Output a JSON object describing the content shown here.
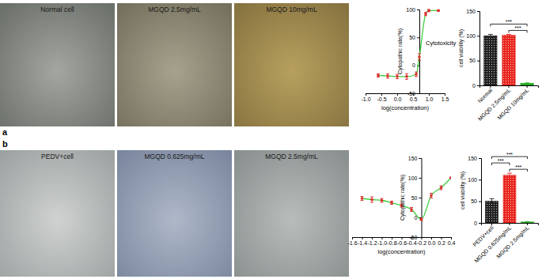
{
  "panels": [
    {
      "label": "a",
      "images": [
        "Normal cell",
        "MGQD 2.5mg/mL",
        "MGQD 10mg/mL"
      ]
    },
    {
      "label": "b",
      "images": [
        "PEDV+cell",
        "MGQD 0.625mg/mL",
        "MGQD 2.5mg/mL"
      ]
    }
  ],
  "chart_data": [
    {
      "type": "line",
      "title": "Cytotoxicity",
      "y_label": "Cytopathic rate(%)",
      "x_label": "log(concentration)",
      "x": [
        -0.6,
        -0.3,
        0.0,
        0.3,
        0.6,
        0.7,
        0.9,
        1.0,
        1.3
      ],
      "values": [
        -18,
        -19,
        -20,
        -20,
        -16,
        15,
        92,
        98,
        98
      ],
      "errors": [
        3,
        4,
        4,
        5,
        4,
        6,
        3,
        2,
        1
      ],
      "color": "#3ccf3c",
      "marker": "circle",
      "xlim": [
        -1,
        1.5
      ],
      "xticks": [
        {
          "value": -1,
          "label": "-1.0"
        },
        -0.5,
        {
          "value": 0,
          "label": "0.0"
        },
        0.5,
        {
          "value": 1,
          "label": "1.0"
        },
        1.5
      ],
      "ylim": [
        -50,
        100
      ],
      "yticks": [
        -50,
        0,
        50,
        100
      ]
    },
    {
      "type": "bar",
      "y_label": "cell viability (%)",
      "categories": [
        "Normal",
        "MGQD 2.5mg/mL",
        "MGQD 10mg/mL"
      ],
      "values": [
        100,
        101,
        4
      ],
      "errors": [
        3,
        2,
        1
      ],
      "colors": [
        "#222222",
        "#e8261f",
        "#22aa22"
      ],
      "ylim": [
        0,
        150
      ],
      "yticks": [
        0,
        50,
        100,
        150
      ],
      "annotations": [
        {
          "text": "***",
          "between": [
            "MGQD 2.5mg/mL",
            "MGQD 10mg/mL"
          ]
        },
        {
          "text": "***",
          "between": [
            "Normal",
            "MGQD 10mg/mL"
          ]
        }
      ]
    },
    {
      "type": "line",
      "y_label": "Cytopathic rate(%)",
      "x_label": "log(concentration)",
      "x": [
        -1.4,
        -1.2,
        -1.0,
        -0.8,
        -0.6,
        -0.4,
        -0.2,
        0.0,
        0.2,
        0.4
      ],
      "values": [
        48,
        45,
        43,
        37,
        30,
        20,
        -5,
        55,
        75,
        100
      ],
      "errors": [
        5,
        7,
        5,
        4,
        4,
        5,
        3,
        6,
        5,
        2
      ],
      "color": "#3ccf3c",
      "marker": "circle",
      "xlim": [
        -1.6,
        0.4
      ],
      "xticks": [
        -1.6,
        -1.4,
        -1.2,
        {
          "value": -1,
          "label": "-1.0"
        },
        -0.8,
        -0.6,
        -0.4,
        -0.2,
        {
          "value": 0,
          "label": "0.0"
        },
        0.2,
        0.4
      ],
      "ylim": [
        -50,
        150
      ],
      "yticks": [
        -50,
        0,
        50,
        100,
        150
      ]
    },
    {
      "type": "bar",
      "y_label": "cell viability (%)",
      "categories": [
        "PEDV+cell",
        "MGQD 0.625mg/mL",
        "MGQD 2.5mg/mL"
      ],
      "values": [
        50,
        110,
        2
      ],
      "errors": [
        6,
        5,
        1
      ],
      "colors": [
        "#222222",
        "#e8261f",
        "#22aa22"
      ],
      "ylim": [
        0,
        150
      ],
      "yticks": [
        0,
        50,
        100,
        150
      ],
      "annotations": [
        {
          "text": "***",
          "between": [
            "MGQD 0.625mg/mL",
            "MGQD 2.5mg/mL"
          ]
        },
        {
          "text": "***",
          "between": [
            "PEDV+cell",
            "MGQD 0.625mg/mL"
          ]
        },
        {
          "text": "***",
          "between": [
            "PEDV+cell",
            "MGQD 2.5mg/mL"
          ]
        }
      ]
    }
  ]
}
